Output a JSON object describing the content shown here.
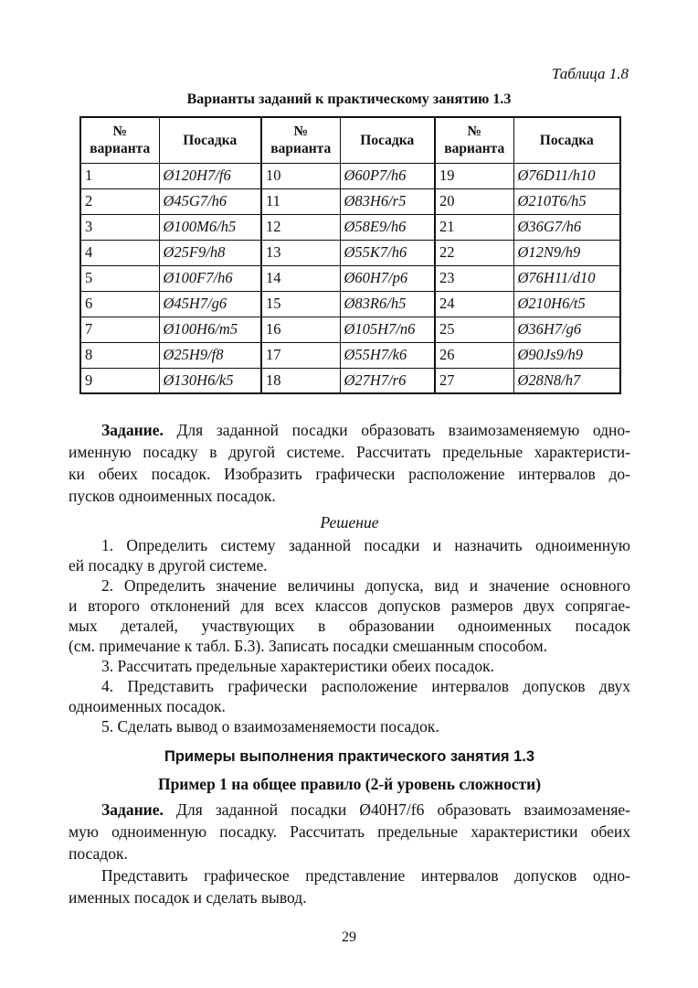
{
  "table_label": "Таблица 1.8",
  "table_caption": "Варианты заданий к практическому занятию 1.3",
  "table": {
    "headers": [
      "№ варианта",
      "Посадка",
      "№ варианта",
      "Посадка",
      "№ варианта",
      "Посадка"
    ],
    "rows": [
      [
        "1",
        "Ø120H7/f6",
        "10",
        "Ø60P7/h6",
        "19",
        "Ø76D11/h10"
      ],
      [
        "2",
        "Ø45G7/h6",
        "11",
        "Ø83H6/r5",
        "20",
        "Ø210T6/h5"
      ],
      [
        "3",
        "Ø100M6/h5",
        "12",
        "Ø58E9/h6",
        "21",
        "Ø36G7/h6"
      ],
      [
        "4",
        "Ø25F9/h8",
        "13",
        "Ø55K7/h6",
        "22",
        "Ø12N9/h9"
      ],
      [
        "5",
        "Ø100F7/h6",
        "14",
        "Ø60H7/p6",
        "23",
        "Ø76H11/d10"
      ],
      [
        "6",
        "Ø45H7/g6",
        "15",
        "Ø83R6/h5",
        "24",
        "Ø210H6/t5"
      ],
      [
        "7",
        "Ø100H6/m5",
        "16",
        "Ø105H7/n6",
        "25",
        "Ø36H7/g6"
      ],
      [
        "8",
        "Ø25H9/f8",
        "17",
        "Ø55H7/k6",
        "26",
        "Ø90Js9/h9"
      ],
      [
        "9",
        "Ø130H6/k5",
        "18",
        "Ø27H7/r6",
        "27",
        "Ø28N8/h7"
      ]
    ]
  },
  "task": {
    "label": "Задание.",
    "lines": [
      " Для заданной посадки образовать взаимозаменяемую одно-",
      "именную посадку в другой системе. Рассчитать предельные характеристи-",
      "ки обеих посадок. Изобразить графически расположение интервалов до-",
      "пусков одноименных посадок."
    ]
  },
  "solution_title": "Решение",
  "steps": [
    [
      "1. Определить систему заданной посадки и назначить одноименную",
      "ей посадку в другой системе."
    ],
    [
      "2. Определить значение величины допуска, вид и значение основного",
      "и второго отклонений для всех классов допусков размеров двух сопрягае-",
      "мых деталей, участвующих в образовании одноименных посадок",
      "(см. примечание к табл. Б.3). Записать посадки смешанным способом."
    ],
    [
      "3. Рассчитать предельные характеристики обеих посадок."
    ],
    [
      "4. Представить графически расположение интервалов допусков двух",
      "одноименных посадок."
    ],
    [
      "5. Сделать вывод о взаимозаменяемости посадок."
    ]
  ],
  "examples_heading": "Примеры выполнения практического занятия 1.3",
  "example1_heading": "Пример 1 на общее правило (2-й уровень сложности)",
  "example1": {
    "label": "Задание.",
    "lines": [
      " Для заданной посадки Ø40H7/f6 образовать взаимозаменяе-",
      "мую одноименную посадку. Рассчитать предельные характеристики обеих",
      "посадок."
    ],
    "para2": [
      "Представить графическое представление интервалов допусков одно-",
      "именных посадок и сделать вывод."
    ]
  },
  "page_number": "29"
}
